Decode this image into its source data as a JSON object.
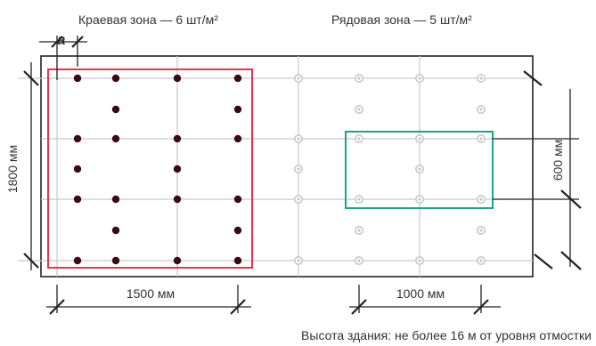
{
  "labels": {
    "edge_zone": "Краевая зона — 6 шт/м²",
    "row_zone": "Рядовая зона — 5 шт/м²",
    "spacing_a": "a",
    "height_1800": "1800 мм",
    "height_600": "600 мм",
    "width_1500": "1500 мм",
    "width_1000": "1000 мм",
    "footnote": "Высота здания: не более 16 м от уровня отмостки"
  },
  "colors": {
    "edge_zone_frame": "#e8344e",
    "row_zone_frame": "#1aa58a",
    "edge_fastener": "#3a0a12",
    "row_fastener": "#c8c8c8",
    "grid": "#c9c9c9",
    "sheet_border": "#222222",
    "dimension": "#222222"
  }
}
